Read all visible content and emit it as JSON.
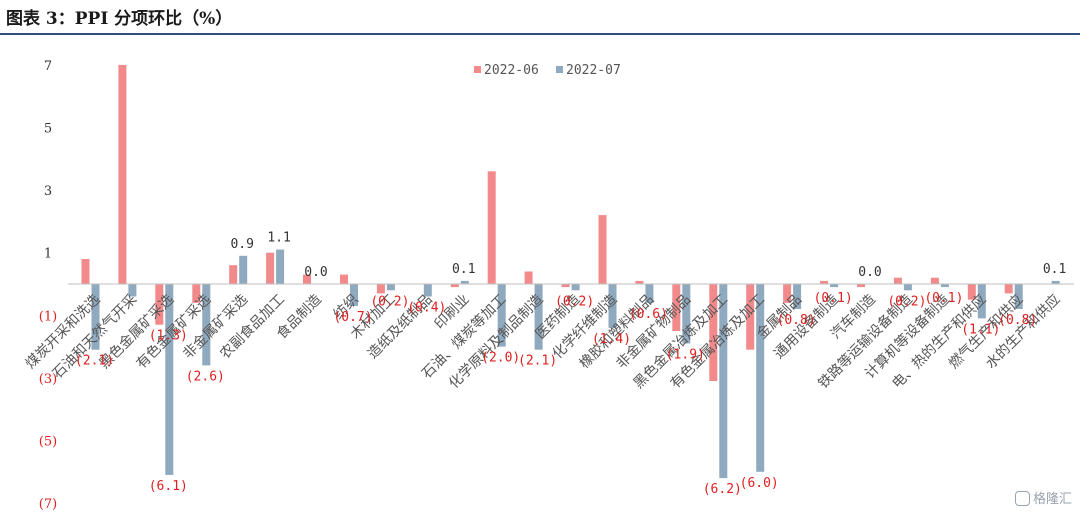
{
  "header": {
    "title": "图表 3：PPI 分项环比（%）"
  },
  "watermark": {
    "text": "格隆汇"
  },
  "chart_data": {
    "type": "bar",
    "ylim": [
      -7,
      7.5
    ],
    "yticks": [
      7,
      5,
      3,
      1,
      -1,
      -3,
      -5,
      -7
    ],
    "ytick_labels": [
      "7",
      "5",
      "3",
      "1",
      "(1)",
      "(3)",
      "(5)",
      "(7)"
    ],
    "legend": {
      "position": "top-center"
    },
    "colors": {
      "2022-06": "#f28a8c",
      "2022-07": "#8fa9bf"
    },
    "categories": [
      "煤炭开采和洗选",
      "石油和天然气开采",
      "黑色金属矿采选",
      "有色金属矿采选",
      "非金属矿采选",
      "农副食品加工",
      "食品制造",
      "纺织",
      "木材加工",
      "造纸及纸制品",
      "印刷业",
      "石油、煤炭等加工",
      "化学原料及制品制造",
      "医药制造",
      "化学纤维制造",
      "橡胶和塑料制品",
      "非金属矿物制品",
      "黑色金属冶炼及加工",
      "有色金属冶炼及加工",
      "金属制品",
      "通用设备制造",
      "汽车制造",
      "铁路等运输设备制造",
      "计算机等设备制造",
      "电、热的生产和供应",
      "燃气生产和供应",
      "水的生产和供应"
    ],
    "series": [
      {
        "name": "2022-06",
        "values": [
          0.8,
          7.0,
          -1.3,
          -0.6,
          0.6,
          1.0,
          0.3,
          0.3,
          -0.3,
          0.0,
          -0.1,
          3.6,
          0.4,
          -0.1,
          2.2,
          0.1,
          -1.5,
          -3.1,
          -2.1,
          -0.6,
          0.1,
          -0.1,
          0.2,
          0.2,
          -0.5,
          -0.3,
          0.0
        ]
      },
      {
        "name": "2022-07",
        "values": [
          -2.1,
          -0.4,
          -6.1,
          -2.6,
          0.9,
          1.1,
          0.0,
          -0.7,
          -0.2,
          -0.4,
          0.1,
          -2.0,
          -2.1,
          -0.2,
          -1.4,
          -0.6,
          -1.9,
          -6.2,
          -6.0,
          -0.8,
          -0.1,
          0.0,
          -0.2,
          -0.1,
          -1.1,
          -0.8,
          0.1
        ]
      }
    ],
    "data_labels": [
      {
        "category_index": 0,
        "text": "(2.1)"
      },
      {
        "category_index": 2,
        "text": "(1.3)"
      },
      {
        "category_index": 2,
        "text": "(6.1)"
      },
      {
        "category_index": 3,
        "text": "(2.6)"
      },
      {
        "category_index": 4,
        "text": "0.9"
      },
      {
        "category_index": 5,
        "text": "1.1"
      },
      {
        "category_index": 6,
        "text": "0.0"
      },
      {
        "category_index": 7,
        "text": "(0.7)"
      },
      {
        "category_index": 8,
        "text": "(0.2)"
      },
      {
        "category_index": 9,
        "text": "(0.4)"
      },
      {
        "category_index": 10,
        "text": "0.1"
      },
      {
        "category_index": 11,
        "text": "(2.0)"
      },
      {
        "category_index": 12,
        "text": "(2.1)"
      },
      {
        "category_index": 13,
        "text": "(0.2)"
      },
      {
        "category_index": 14,
        "text": "(1.4)"
      },
      {
        "category_index": 15,
        "text": "(0.6)"
      },
      {
        "category_index": 16,
        "text": "(1.9)"
      },
      {
        "category_index": 17,
        "text": "(6.2)"
      },
      {
        "category_index": 18,
        "text": "(6.0)"
      },
      {
        "category_index": 19,
        "text": "(0.8)"
      },
      {
        "category_index": 20,
        "text": "(0.1)"
      },
      {
        "category_index": 21,
        "text": "0.0"
      },
      {
        "category_index": 22,
        "text": "(0.2)"
      },
      {
        "category_index": 23,
        "text": "(0.1)"
      },
      {
        "category_index": 24,
        "text": "(1.1)"
      },
      {
        "category_index": 25,
        "text": "(0.8)"
      },
      {
        "category_index": 26,
        "text": "0.1"
      }
    ]
  }
}
